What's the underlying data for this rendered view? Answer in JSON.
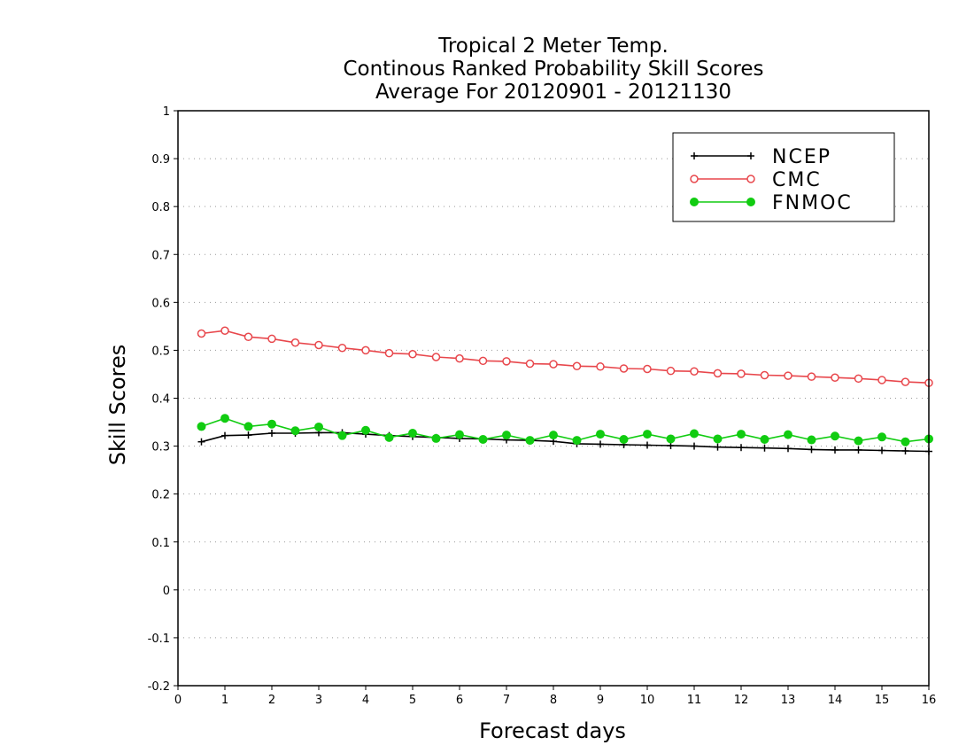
{
  "chart_data": {
    "type": "line",
    "title": [
      "Tropical 2 Meter Temp.",
      "Continous Ranked Probability Skill Scores",
      "Average For 20120901 - 20121130"
    ],
    "xlabel": "Forecast days",
    "ylabel": "Skill Scores",
    "xlim": [
      0,
      16
    ],
    "ylim": [
      -0.2,
      1
    ],
    "x_ticks": [
      0,
      1,
      2,
      3,
      4,
      5,
      6,
      7,
      8,
      9,
      10,
      11,
      12,
      13,
      14,
      15,
      16
    ],
    "x_tick_labels": [
      "0",
      "1",
      "2",
      "3",
      "4",
      "5",
      "6",
      "7",
      "8",
      "9",
      "10",
      "11",
      "12",
      "13",
      "14",
      "15",
      "16"
    ],
    "y_ticks": [
      -0.2,
      -0.1,
      0,
      0.1,
      0.2,
      0.3,
      0.4,
      0.5,
      0.6,
      0.7,
      0.8,
      0.9,
      1
    ],
    "y_tick_labels": [
      "-0.2",
      "-0.1",
      "0",
      "0.1",
      "0.2",
      "0.3",
      "0.4",
      "0.5",
      "0.6",
      "0.7",
      "0.8",
      "0.9",
      "1"
    ],
    "grid": "horizontal dotted",
    "legend_position": "top-right",
    "x": [
      0.5,
      1,
      1.5,
      2,
      2.5,
      3,
      3.5,
      4,
      4.5,
      5,
      5.5,
      6,
      6.5,
      7,
      7.5,
      8,
      8.5,
      9,
      9.5,
      10,
      10.5,
      11,
      11.5,
      12,
      12.5,
      13,
      13.5,
      14,
      14.5,
      15,
      15.5,
      16
    ],
    "series": [
      {
        "name": "NCEP",
        "color": "#000000",
        "marker": "plus",
        "values": [
          0.309,
          0.322,
          0.323,
          0.327,
          0.327,
          0.328,
          0.328,
          0.325,
          0.322,
          0.32,
          0.318,
          0.316,
          0.315,
          0.313,
          0.312,
          0.31,
          0.305,
          0.304,
          0.303,
          0.302,
          0.301,
          0.3,
          0.298,
          0.297,
          0.296,
          0.295,
          0.293,
          0.292,
          0.292,
          0.291,
          0.29,
          0.289
        ]
      },
      {
        "name": "CMC",
        "color": "#e8474c",
        "marker": "open-circle",
        "values": [
          0.535,
          0.541,
          0.528,
          0.524,
          0.516,
          0.511,
          0.505,
          0.5,
          0.494,
          0.492,
          0.486,
          0.483,
          0.478,
          0.477,
          0.472,
          0.471,
          0.467,
          0.466,
          0.462,
          0.461,
          0.457,
          0.456,
          0.452,
          0.451,
          0.448,
          0.447,
          0.445,
          0.443,
          0.441,
          0.438,
          0.434,
          0.432
        ]
      },
      {
        "name": "FNMOC",
        "color": "#11cc11",
        "marker": "filled-circle",
        "values": [
          0.341,
          0.358,
          0.341,
          0.346,
          0.332,
          0.34,
          0.322,
          0.333,
          0.318,
          0.327,
          0.316,
          0.324,
          0.314,
          0.323,
          0.312,
          0.323,
          0.312,
          0.325,
          0.314,
          0.325,
          0.315,
          0.326,
          0.315,
          0.325,
          0.314,
          0.324,
          0.313,
          0.321,
          0.311,
          0.319,
          0.309,
          0.315
        ]
      }
    ]
  }
}
